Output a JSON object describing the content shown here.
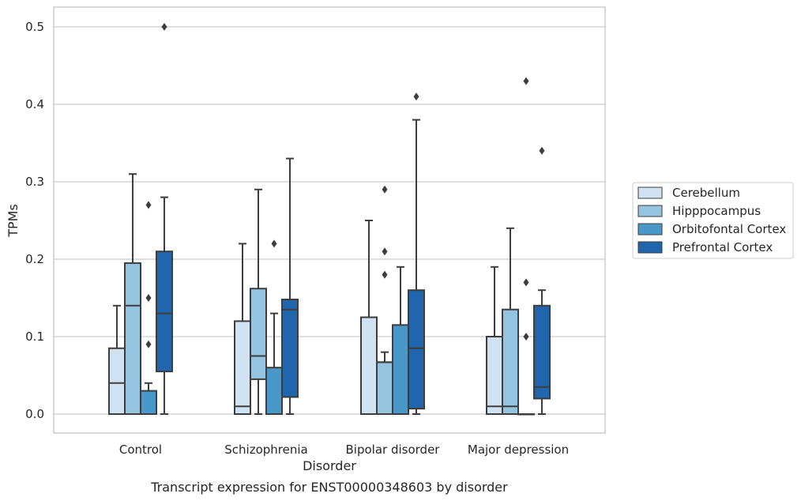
{
  "chart_data": {
    "type": "box",
    "title": "",
    "caption": "Transcript expression for ENST00000348603 by disorder",
    "xlabel": "Disorder",
    "ylabel": "TPMs",
    "ylim": [
      -0.025,
      0.525
    ],
    "yticks": [
      "0.0",
      "0.1",
      "0.2",
      "0.3",
      "0.4",
      "0.5"
    ],
    "grid": "horizontal",
    "legend_position": "right",
    "categories": [
      "Control",
      "Schizophrenia",
      "Bipolar disorder",
      "Major depression"
    ],
    "series": [
      {
        "name": "Cerebellum",
        "color": "#d0e1f2",
        "boxes": [
          {
            "low": 0.0,
            "q1": 0.0,
            "median": 0.04,
            "q3": 0.085,
            "high": 0.14,
            "outliers": []
          },
          {
            "low": 0.0,
            "q1": 0.0,
            "median": 0.01,
            "q3": 0.12,
            "high": 0.22,
            "outliers": []
          },
          {
            "low": 0.0,
            "q1": 0.0,
            "median": 0.0,
            "q3": 0.125,
            "high": 0.25,
            "outliers": []
          },
          {
            "low": 0.0,
            "q1": 0.0,
            "median": 0.01,
            "q3": 0.1,
            "high": 0.19,
            "outliers": []
          }
        ]
      },
      {
        "name": "Hipppocampus",
        "color": "#94c4df",
        "boxes": [
          {
            "low": 0.0,
            "q1": 0.0,
            "median": 0.14,
            "q3": 0.195,
            "high": 0.31,
            "outliers": []
          },
          {
            "low": 0.0,
            "q1": 0.045,
            "median": 0.075,
            "q3": 0.162,
            "high": 0.29,
            "outliers": []
          },
          {
            "low": 0.0,
            "q1": 0.0,
            "median": 0.067,
            "q3": 0.067,
            "high": 0.08,
            "outliers": [
              0.18,
              0.21,
              0.29
            ]
          },
          {
            "low": 0.0,
            "q1": 0.0,
            "median": 0.01,
            "q3": 0.135,
            "high": 0.24,
            "outliers": []
          }
        ]
      },
      {
        "name": "Orbitofontal Cortex",
        "color": "#4a98c9",
        "boxes": [
          {
            "low": 0.0,
            "q1": 0.0,
            "median": 0.0,
            "q3": 0.03,
            "high": 0.04,
            "outliers": [
              0.09,
              0.15,
              0.27
            ]
          },
          {
            "low": 0.0,
            "q1": 0.0,
            "median": 0.0,
            "q3": 0.06,
            "high": 0.13,
            "outliers": [
              0.22
            ]
          },
          {
            "low": 0.0,
            "q1": 0.0,
            "median": 0.0,
            "q3": 0.115,
            "high": 0.19,
            "outliers": []
          },
          {
            "low": 0.0,
            "q1": 0.0,
            "median": 0.0,
            "q3": 0.0,
            "high": 0.0,
            "outliers": [
              0.1,
              0.17,
              0.43
            ]
          }
        ]
      },
      {
        "name": "Prefrontal Cortex",
        "color": "#2166ac",
        "boxes": [
          {
            "low": 0.0,
            "q1": 0.055,
            "median": 0.13,
            "q3": 0.21,
            "high": 0.28,
            "outliers": [
              0.5
            ]
          },
          {
            "low": 0.0,
            "q1": 0.022,
            "median": 0.135,
            "q3": 0.148,
            "high": 0.33,
            "outliers": []
          },
          {
            "low": 0.0,
            "q1": 0.007,
            "median": 0.085,
            "q3": 0.16,
            "high": 0.38,
            "outliers": [
              0.41
            ]
          },
          {
            "low": 0.0,
            "q1": 0.02,
            "median": 0.035,
            "q3": 0.14,
            "high": 0.16,
            "outliers": [
              0.34
            ]
          }
        ]
      }
    ]
  }
}
